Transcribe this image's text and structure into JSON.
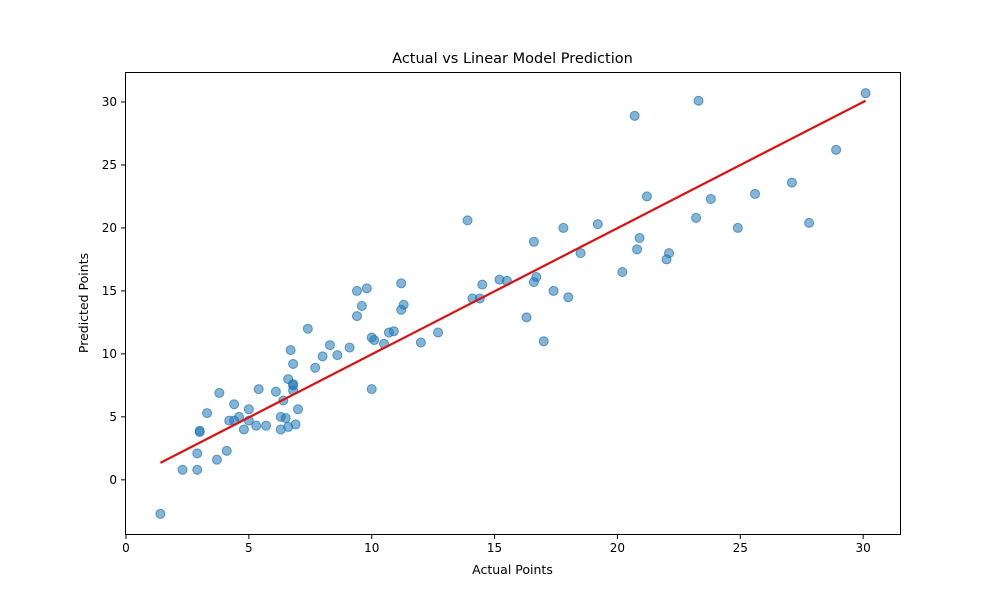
{
  "chart_data": {
    "type": "scatter",
    "title": "Actual vs Linear Model Prediction",
    "xlabel": "Actual Points",
    "ylabel": "Predicted Points",
    "xlim": [
      0,
      31.5
    ],
    "ylim": [
      -4.3,
      32.3
    ],
    "x_ticks": [
      0,
      5,
      10,
      15,
      20,
      25,
      30
    ],
    "y_ticks": [
      0,
      5,
      10,
      15,
      20,
      25,
      30
    ],
    "grid": false,
    "legend": "none",
    "point_color": "#1f77b4",
    "point_alpha": 0.55,
    "line_color": "#dd1111",
    "series": [
      {
        "kind": "points",
        "points": [
          [
            1.4,
            -2.7
          ],
          [
            2.3,
            0.8
          ],
          [
            2.9,
            0.8
          ],
          [
            2.9,
            2.1
          ],
          [
            3.0,
            3.9
          ],
          [
            3.0,
            3.8
          ],
          [
            3.3,
            5.3
          ],
          [
            3.7,
            1.6
          ],
          [
            3.8,
            6.9
          ],
          [
            4.1,
            2.3
          ],
          [
            4.2,
            4.7
          ],
          [
            4.4,
            6.0
          ],
          [
            4.4,
            4.7
          ],
          [
            4.6,
            5.0
          ],
          [
            4.8,
            4.0
          ],
          [
            5.0,
            5.6
          ],
          [
            5.0,
            4.7
          ],
          [
            5.3,
            4.3
          ],
          [
            5.4,
            7.2
          ],
          [
            5.7,
            4.3
          ],
          [
            6.1,
            7.0
          ],
          [
            6.3,
            4.0
          ],
          [
            6.3,
            5.0
          ],
          [
            6.4,
            6.3
          ],
          [
            6.5,
            4.9
          ],
          [
            6.6,
            8.0
          ],
          [
            6.6,
            4.2
          ],
          [
            6.7,
            10.3
          ],
          [
            6.8,
            7.6
          ],
          [
            6.8,
            7.5
          ],
          [
            6.8,
            9.2
          ],
          [
            6.8,
            7.1
          ],
          [
            6.9,
            4.4
          ],
          [
            7.0,
            5.6
          ],
          [
            7.4,
            12.0
          ],
          [
            7.7,
            8.9
          ],
          [
            8.0,
            9.8
          ],
          [
            8.3,
            10.7
          ],
          [
            8.6,
            9.9
          ],
          [
            9.1,
            10.5
          ],
          [
            9.4,
            15.0
          ],
          [
            9.4,
            13.0
          ],
          [
            9.6,
            13.8
          ],
          [
            9.8,
            15.2
          ],
          [
            10.0,
            11.3
          ],
          [
            10.0,
            7.2
          ],
          [
            10.1,
            11.1
          ],
          [
            10.5,
            10.8
          ],
          [
            10.7,
            11.7
          ],
          [
            10.9,
            11.8
          ],
          [
            11.2,
            15.6
          ],
          [
            11.2,
            13.5
          ],
          [
            11.3,
            13.9
          ],
          [
            12.0,
            10.9
          ],
          [
            12.7,
            11.7
          ],
          [
            13.9,
            20.6
          ],
          [
            14.1,
            14.4
          ],
          [
            14.4,
            14.4
          ],
          [
            14.5,
            15.5
          ],
          [
            15.2,
            15.9
          ],
          [
            15.5,
            15.8
          ],
          [
            16.3,
            12.9
          ],
          [
            16.6,
            18.9
          ],
          [
            16.6,
            15.7
          ],
          [
            16.7,
            16.1
          ],
          [
            17.0,
            11.0
          ],
          [
            17.4,
            15.0
          ],
          [
            17.8,
            20.0
          ],
          [
            18.0,
            14.5
          ],
          [
            18.5,
            18.0
          ],
          [
            19.2,
            20.3
          ],
          [
            20.2,
            16.5
          ],
          [
            20.7,
            28.9
          ],
          [
            20.8,
            18.3
          ],
          [
            20.9,
            19.2
          ],
          [
            21.2,
            22.5
          ],
          [
            22.0,
            17.5
          ],
          [
            22.1,
            18.0
          ],
          [
            23.2,
            20.8
          ],
          [
            23.3,
            30.1
          ],
          [
            23.8,
            22.3
          ],
          [
            24.9,
            20.0
          ],
          [
            25.6,
            22.7
          ],
          [
            27.1,
            23.6
          ],
          [
            27.8,
            20.4
          ],
          [
            28.9,
            26.2
          ],
          [
            30.1,
            30.7
          ]
        ]
      },
      {
        "kind": "line",
        "points": [
          [
            1.4,
            1.35
          ],
          [
            30.1,
            30.1
          ]
        ]
      }
    ]
  }
}
